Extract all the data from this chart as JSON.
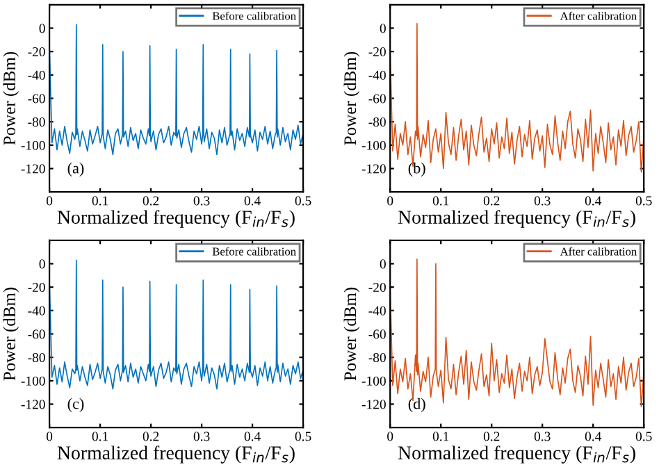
{
  "chart_data": [
    {
      "type": "line",
      "xlabel": "Normalized frequency (F$_{in}$/F$_{s}$)",
      "ylabel": "Power (dBm)",
      "xlim": [
        0,
        0.5
      ],
      "ylim": [
        -140,
        20
      ],
      "xticks": [
        0,
        0.1,
        0.2,
        0.3,
        0.4,
        0.5
      ],
      "yticks": [
        -120,
        -100,
        -80,
        -60,
        -40,
        -20,
        0
      ],
      "legend": "top right",
      "annotations": [
        "(a)"
      ],
      "series": [
        {
          "name": "Before calibration",
          "color": "#0072bd",
          "x": [
            0,
            0.005,
            0.01,
            0.015,
            0.02,
            0.025,
            0.03,
            0.035,
            0.04,
            0.045,
            0.05,
            0.052,
            0.053,
            0.054,
            0.055,
            0.06,
            0.065,
            0.07,
            0.075,
            0.08,
            0.085,
            0.09,
            0.095,
            0.1,
            0.104,
            0.105,
            0.106,
            0.11,
            0.115,
            0.12,
            0.125,
            0.13,
            0.135,
            0.14,
            0.144,
            0.145,
            0.146,
            0.15,
            0.155,
            0.16,
            0.165,
            0.17,
            0.175,
            0.18,
            0.185,
            0.19,
            0.195,
            0.197,
            0.198,
            0.199,
            0.2,
            0.205,
            0.21,
            0.215,
            0.22,
            0.225,
            0.23,
            0.235,
            0.24,
            0.245,
            0.249,
            0.25,
            0.251,
            0.255,
            0.26,
            0.265,
            0.27,
            0.275,
            0.28,
            0.285,
            0.29,
            0.295,
            0.3,
            0.302,
            0.303,
            0.304,
            0.305,
            0.31,
            0.315,
            0.32,
            0.325,
            0.33,
            0.335,
            0.34,
            0.345,
            0.35,
            0.356,
            0.357,
            0.358,
            0.36,
            0.365,
            0.37,
            0.375,
            0.38,
            0.385,
            0.39,
            0.394,
            0.395,
            0.396,
            0.4,
            0.405,
            0.41,
            0.415,
            0.42,
            0.425,
            0.43,
            0.435,
            0.44,
            0.445,
            0.447,
            0.448,
            0.449,
            0.45,
            0.455,
            0.46,
            0.465,
            0.47,
            0.475,
            0.48,
            0.485,
            0.49,
            0.495,
            0.5
          ],
          "values": [
            -15,
            -98,
            -86,
            -104,
            -88,
            -100,
            -84,
            -97,
            -107,
            -89,
            -95,
            -90,
            3,
            -91,
            -86,
            -101,
            -88,
            -96,
            -105,
            -87,
            -99,
            -92,
            -84,
            -98,
            -90,
            -14,
            -92,
            -103,
            -87,
            -95,
            -108,
            -90,
            -86,
            -99,
            -91,
            -20,
            -93,
            -88,
            -101,
            -85,
            -96,
            -90,
            -103,
            -87,
            -94,
            -99,
            -86,
            -92,
            -15,
            -90,
            -97,
            -88,
            -104,
            -91,
            -86,
            -98,
            -93,
            -84,
            -100,
            -89,
            -92,
            -18,
            -94,
            -87,
            -102,
            -90,
            -85,
            -97,
            -106,
            -88,
            -95,
            -84,
            -99,
            -91,
            -14,
            -90,
            -97,
            -86,
            -103,
            -89,
            -94,
            -108,
            -87,
            -98,
            -85,
            -100,
            -90,
            -18,
            -92,
            -88,
            -104,
            -86,
            -96,
            -90,
            -101,
            -85,
            -93,
            -22,
            -91,
            -98,
            -87,
            -105,
            -89,
            -95,
            -84,
            -99,
            -88,
            -103,
            -91,
            -89,
            -19,
            -93,
            -86,
            -100,
            -85,
            -97,
            -90,
            -104,
            -87,
            -95,
            -83,
            -99,
            -90
          ]
        }
      ]
    },
    {
      "type": "line",
      "xlabel": "Normalized frequency (F$_{in}$/F$_{s}$)",
      "ylabel": "Power (dBm)",
      "xlim": [
        0,
        0.5
      ],
      "ylim": [
        -140,
        20
      ],
      "xticks": [
        0,
        0.1,
        0.2,
        0.3,
        0.4,
        0.5
      ],
      "yticks": [
        -120,
        -100,
        -80,
        -60,
        -40,
        -20,
        0
      ],
      "legend": "top right",
      "annotations": [
        "(b)"
      ],
      "series": [
        {
          "name": "After calibration",
          "color": "#d95319",
          "x": [
            0,
            0.005,
            0.01,
            0.015,
            0.02,
            0.025,
            0.03,
            0.035,
            0.04,
            0.045,
            0.05,
            0.052,
            0.053,
            0.054,
            0.055,
            0.06,
            0.065,
            0.07,
            0.075,
            0.08,
            0.085,
            0.09,
            0.095,
            0.1,
            0.105,
            0.11,
            0.115,
            0.12,
            0.125,
            0.13,
            0.135,
            0.14,
            0.145,
            0.15,
            0.155,
            0.16,
            0.165,
            0.17,
            0.175,
            0.18,
            0.185,
            0.19,
            0.195,
            0.2,
            0.205,
            0.21,
            0.215,
            0.22,
            0.225,
            0.23,
            0.235,
            0.24,
            0.245,
            0.25,
            0.255,
            0.26,
            0.265,
            0.27,
            0.275,
            0.28,
            0.285,
            0.29,
            0.295,
            0.3,
            0.305,
            0.31,
            0.315,
            0.32,
            0.325,
            0.33,
            0.335,
            0.34,
            0.345,
            0.35,
            0.355,
            0.36,
            0.365,
            0.37,
            0.375,
            0.38,
            0.385,
            0.39,
            0.395,
            0.4,
            0.405,
            0.41,
            0.415,
            0.42,
            0.425,
            0.43,
            0.435,
            0.44,
            0.445,
            0.45,
            0.455,
            0.46,
            0.465,
            0.47,
            0.475,
            0.48,
            0.485,
            0.49,
            0.495,
            0.5
          ],
          "values": [
            -20,
            -105,
            -82,
            -112,
            -90,
            -100,
            -80,
            -108,
            -93,
            -118,
            -88,
            -92,
            4,
            -95,
            -84,
            -110,
            -91,
            -102,
            -79,
            -115,
            -95,
            -86,
            -106,
            -90,
            -120,
            -72,
            -98,
            -108,
            -85,
            -113,
            -92,
            -78,
            -104,
            -88,
            -117,
            -83,
            -100,
            -109,
            -90,
            -76,
            -106,
            -94,
            -114,
            -86,
            -99,
            -81,
            -111,
            -93,
            -103,
            -77,
            -107,
            -89,
            -116,
            -96,
            -84,
            -110,
            -91,
            -101,
            -79,
            -112,
            -94,
            -87,
            -105,
            -92,
            -119,
            -82,
            -100,
            -108,
            -75,
            -97,
            -113,
            -88,
            -103,
            -80,
            -71,
            -99,
            -111,
            -86,
            -95,
            -114,
            -78,
            -102,
            -70,
            -122,
            -90,
            -107,
            -84,
            -98,
            -115,
            -81,
            -104,
            -93,
            -117,
            -87,
            -101,
            -79,
            -109,
            -92,
            -84,
            -106,
            -96,
            -80,
            -123,
            -91
          ]
        }
      ]
    },
    {
      "type": "line",
      "xlabel": "Normalized frequency (F$_{in}$/F$_{s}$)",
      "ylabel": "Power (dBm)",
      "xlim": [
        0,
        0.5
      ],
      "ylim": [
        -140,
        20
      ],
      "xticks": [
        0,
        0.1,
        0.2,
        0.3,
        0.4,
        0.5
      ],
      "yticks": [
        -120,
        -100,
        -80,
        -60,
        -40,
        -20,
        0
      ],
      "legend": "top right",
      "annotations": [
        "(c)"
      ],
      "series": [
        {
          "name": "Before calibration",
          "color": "#0072bd",
          "x": [
            0,
            0.005,
            0.01,
            0.015,
            0.02,
            0.025,
            0.03,
            0.035,
            0.04,
            0.045,
            0.05,
            0.052,
            0.053,
            0.054,
            0.055,
            0.06,
            0.065,
            0.07,
            0.075,
            0.08,
            0.085,
            0.09,
            0.095,
            0.1,
            0.104,
            0.105,
            0.106,
            0.11,
            0.115,
            0.12,
            0.125,
            0.13,
            0.135,
            0.14,
            0.144,
            0.145,
            0.146,
            0.15,
            0.155,
            0.16,
            0.165,
            0.17,
            0.175,
            0.18,
            0.185,
            0.19,
            0.195,
            0.197,
            0.198,
            0.199,
            0.2,
            0.205,
            0.21,
            0.215,
            0.22,
            0.225,
            0.23,
            0.235,
            0.24,
            0.245,
            0.249,
            0.25,
            0.251,
            0.255,
            0.26,
            0.265,
            0.27,
            0.275,
            0.28,
            0.285,
            0.29,
            0.295,
            0.3,
            0.302,
            0.303,
            0.304,
            0.305,
            0.31,
            0.315,
            0.32,
            0.325,
            0.33,
            0.335,
            0.34,
            0.345,
            0.35,
            0.356,
            0.357,
            0.358,
            0.36,
            0.365,
            0.37,
            0.375,
            0.38,
            0.385,
            0.39,
            0.394,
            0.395,
            0.396,
            0.4,
            0.405,
            0.41,
            0.415,
            0.42,
            0.425,
            0.43,
            0.435,
            0.44,
            0.445,
            0.447,
            0.448,
            0.449,
            0.45,
            0.455,
            0.46,
            0.465,
            0.47,
            0.475,
            0.48,
            0.485,
            0.49,
            0.495,
            0.5
          ],
          "values": [
            -15,
            -97,
            -87,
            -103,
            -89,
            -101,
            -84,
            -96,
            -106,
            -90,
            -94,
            -90,
            3,
            -91,
            -87,
            -100,
            -88,
            -97,
            -104,
            -86,
            -99,
            -93,
            -85,
            -98,
            -90,
            -14,
            -92,
            -102,
            -88,
            -95,
            -107,
            -91,
            -86,
            -100,
            -91,
            -20,
            -93,
            -87,
            -101,
            -85,
            -97,
            -90,
            -102,
            -88,
            -94,
            -100,
            -86,
            -92,
            -15,
            -90,
            -96,
            -88,
            -105,
            -91,
            -85,
            -98,
            -93,
            -84,
            -101,
            -89,
            -92,
            -18,
            -94,
            -86,
            -103,
            -90,
            -85,
            -96,
            -105,
            -88,
            -94,
            -84,
            -100,
            -91,
            -14,
            -90,
            -96,
            -86,
            -102,
            -89,
            -95,
            -107,
            -87,
            -97,
            -85,
            -101,
            -90,
            -18,
            -92,
            -87,
            -103,
            -86,
            -97,
            -90,
            -100,
            -85,
            -93,
            -22,
            -91,
            -97,
            -87,
            -104,
            -89,
            -96,
            -84,
            -100,
            -88,
            -102,
            -91,
            -89,
            -19,
            -93,
            -86,
            -101,
            -85,
            -96,
            -90,
            -103,
            -87,
            -94,
            -84,
            -98,
            -91
          ]
        }
      ]
    },
    {
      "type": "line",
      "xlabel": "Normalized frequency (F$_{in}$/F$_{s}$)",
      "ylabel": "Power (dBm)",
      "xlim": [
        0,
        0.5
      ],
      "ylim": [
        -140,
        20
      ],
      "xticks": [
        0,
        0.1,
        0.2,
        0.3,
        0.4,
        0.5
      ],
      "yticks": [
        -120,
        -100,
        -80,
        -60,
        -40,
        -20,
        0
      ],
      "legend": "top right",
      "annotations": [
        "(d)"
      ],
      "series": [
        {
          "name": "After calibration",
          "color": "#d95319",
          "x": [
            0,
            0.005,
            0.01,
            0.015,
            0.02,
            0.025,
            0.03,
            0.035,
            0.04,
            0.045,
            0.05,
            0.052,
            0.053,
            0.054,
            0.055,
            0.06,
            0.065,
            0.07,
            0.075,
            0.08,
            0.085,
            0.089,
            0.09,
            0.091,
            0.095,
            0.1,
            0.105,
            0.11,
            0.115,
            0.12,
            0.125,
            0.13,
            0.135,
            0.14,
            0.145,
            0.15,
            0.155,
            0.16,
            0.165,
            0.17,
            0.175,
            0.18,
            0.185,
            0.19,
            0.195,
            0.2,
            0.205,
            0.21,
            0.215,
            0.22,
            0.225,
            0.23,
            0.235,
            0.24,
            0.245,
            0.25,
            0.255,
            0.26,
            0.265,
            0.27,
            0.275,
            0.28,
            0.285,
            0.29,
            0.295,
            0.3,
            0.305,
            0.31,
            0.315,
            0.32,
            0.325,
            0.33,
            0.335,
            0.34,
            0.345,
            0.35,
            0.355,
            0.36,
            0.365,
            0.37,
            0.375,
            0.38,
            0.385,
            0.39,
            0.395,
            0.4,
            0.405,
            0.41,
            0.415,
            0.42,
            0.425,
            0.43,
            0.435,
            0.44,
            0.445,
            0.45,
            0.455,
            0.46,
            0.465,
            0.47,
            0.475,
            0.48,
            0.485,
            0.49,
            0.495,
            0.5
          ],
          "values": [
            -20,
            -104,
            -83,
            -111,
            -90,
            -101,
            -81,
            -107,
            -94,
            -117,
            -78,
            -92,
            4,
            -95,
            -85,
            -109,
            -92,
            -101,
            -80,
            -114,
            -96,
            -90,
            0,
            -92,
            -105,
            -91,
            -119,
            -63,
            -99,
            -107,
            -86,
            -112,
            -93,
            -79,
            -103,
            -74,
            -116,
            -84,
            -101,
            -108,
            -91,
            -77,
            -105,
            -95,
            -113,
            -68,
            -100,
            -82,
            -110,
            -94,
            -102,
            -78,
            -106,
            -90,
            -115,
            -97,
            -85,
            -109,
            -92,
            -100,
            -80,
            -111,
            -95,
            -88,
            -104,
            -93,
            -64,
            -83,
            -101,
            -107,
            -76,
            -98,
            -112,
            -89,
            -102,
            -81,
            -73,
            -100,
            -110,
            -87,
            -96,
            -113,
            -79,
            -103,
            -62,
            -121,
            -91,
            -106,
            -85,
            -99,
            -114,
            -82,
            -105,
            -94,
            -116,
            -88,
            -102,
            -80,
            -108,
            -93,
            -85,
            -105,
            -97,
            -81,
            -122,
            -92
          ]
        }
      ]
    }
  ]
}
